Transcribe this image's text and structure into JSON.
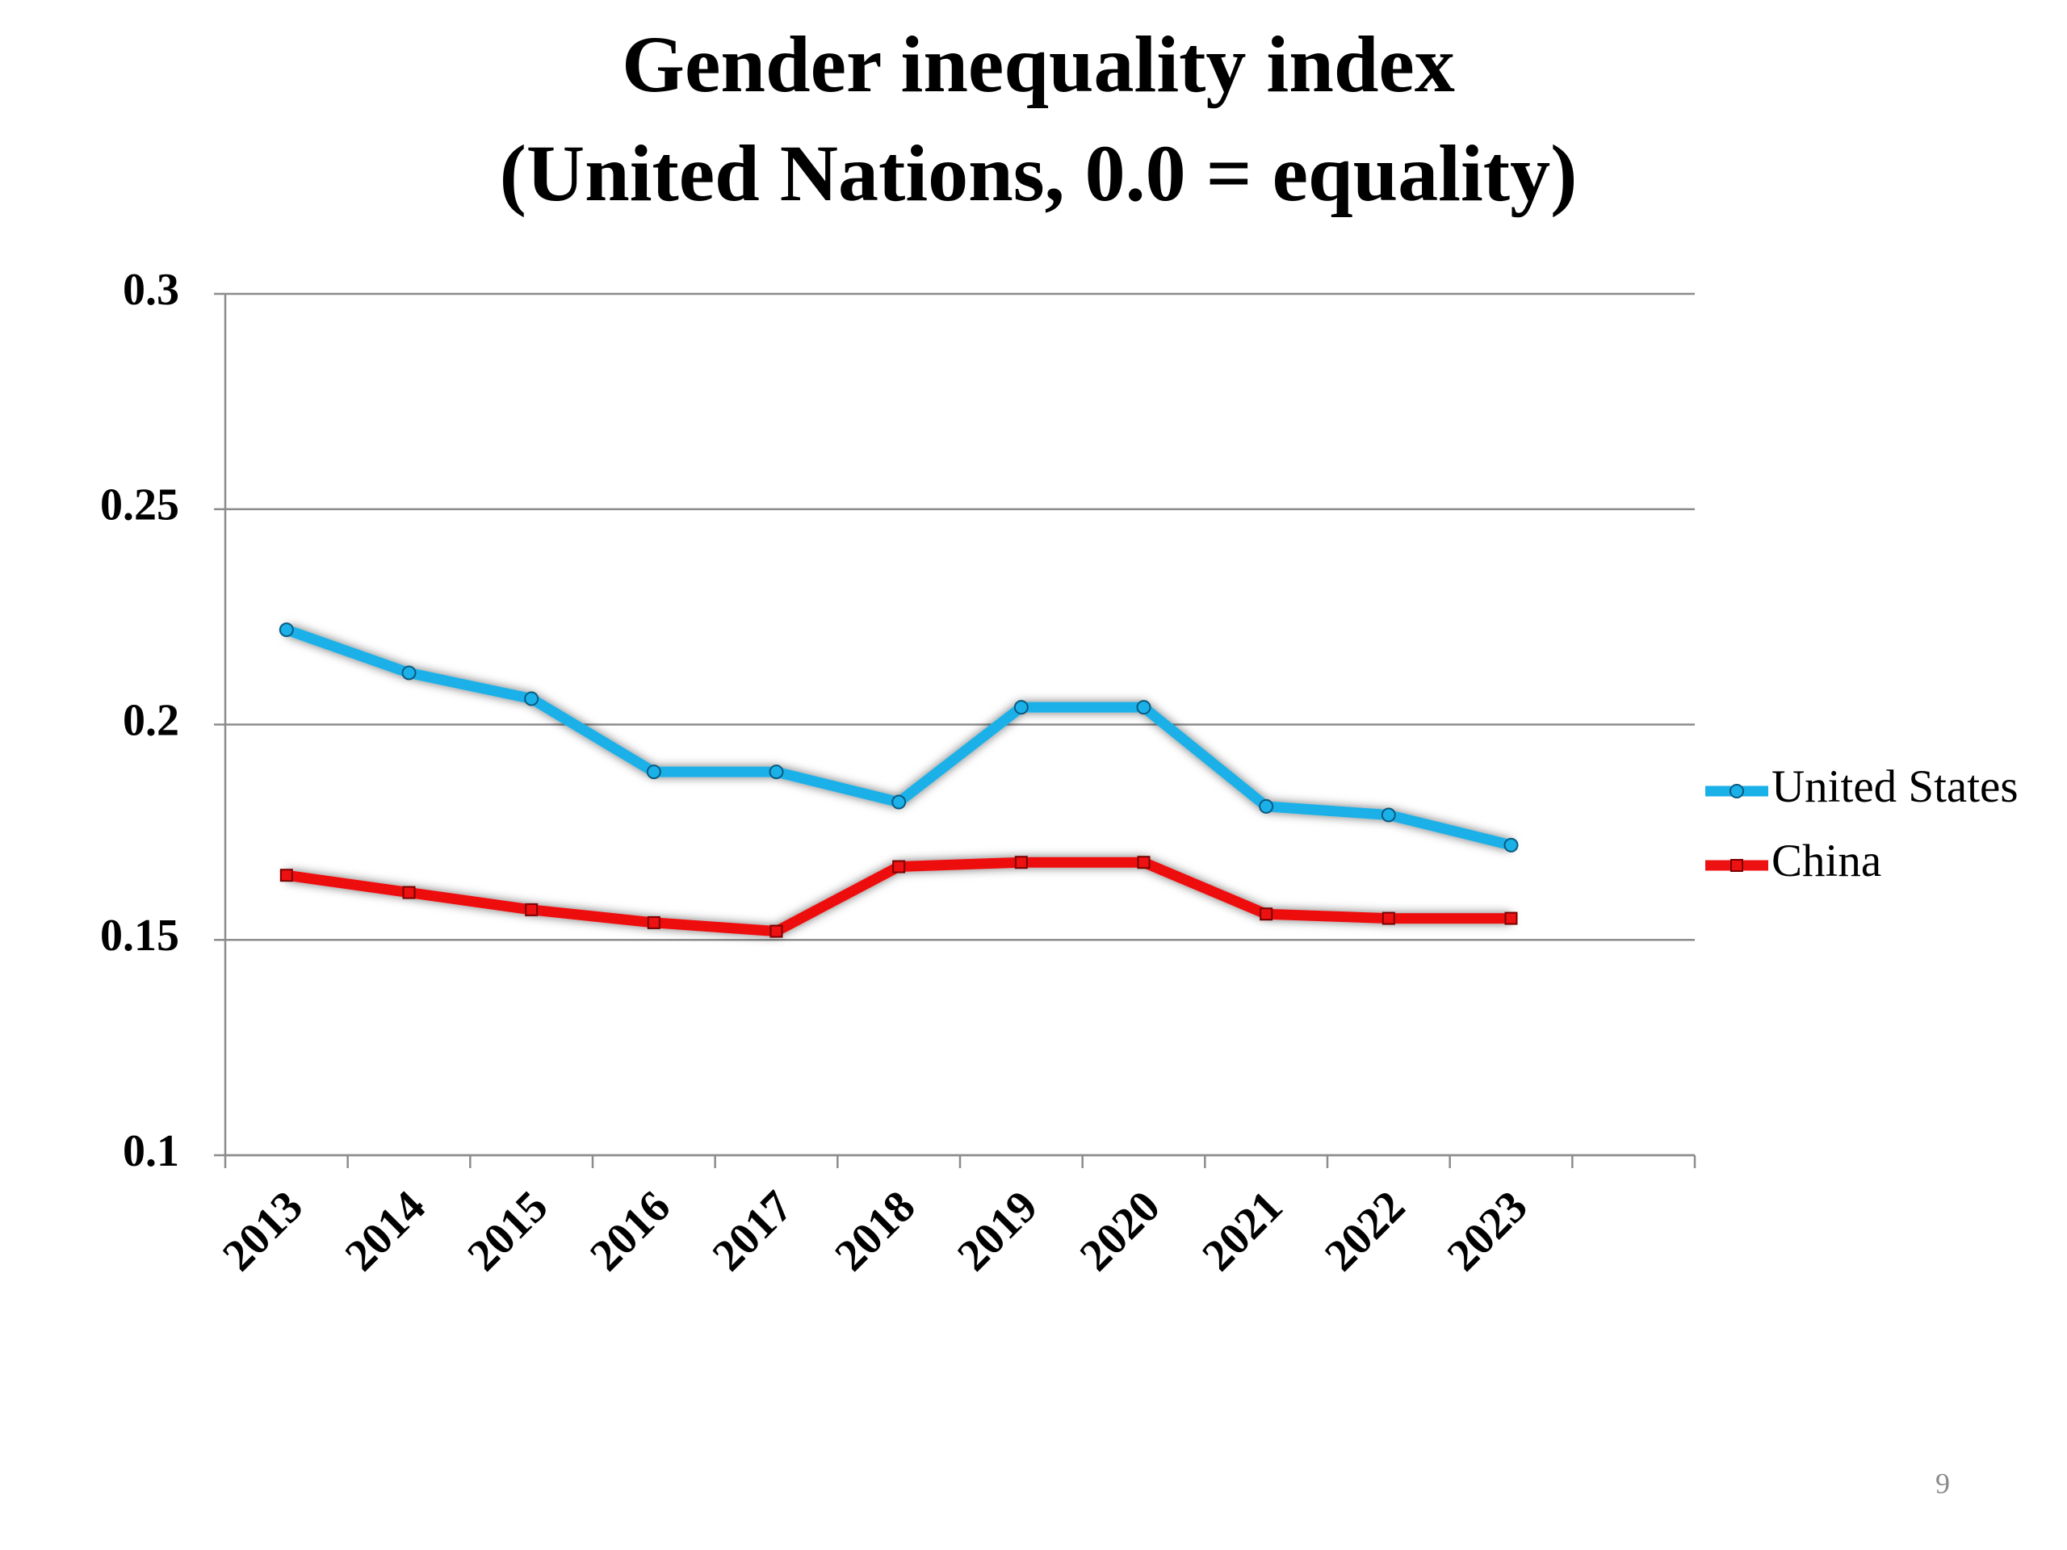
{
  "chart_data": {
    "type": "line",
    "title": [
      "Gender inequality index",
      "(United Nations, 0.0 = equality)"
    ],
    "categories": [
      "2013",
      "2014",
      "2015",
      "2016",
      "2017",
      "2018",
      "2019",
      "2020",
      "2021",
      "2022",
      "2023",
      null
    ],
    "series": [
      {
        "name": "United States",
        "color": "#1ab0e8",
        "values": [
          0.222,
          0.212,
          0.206,
          0.189,
          0.189,
          0.182,
          0.204,
          0.204,
          0.181,
          0.179,
          0.172,
          null
        ]
      },
      {
        "name": "China",
        "color": "#ee1111",
        "values": [
          0.165,
          0.161,
          0.157,
          0.154,
          0.152,
          0.167,
          0.168,
          0.168,
          0.156,
          0.155,
          0.155,
          null
        ]
      }
    ],
    "ylim": [
      0.1,
      0.3
    ],
    "yticks": [
      0.1,
      0.15,
      0.2,
      0.25,
      0.3
    ],
    "grid": true,
    "legend": "right"
  },
  "slide_number": "9"
}
